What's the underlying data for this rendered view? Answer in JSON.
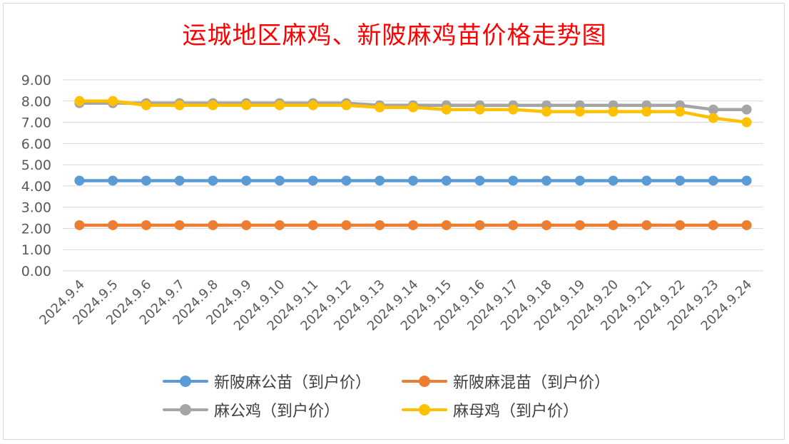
{
  "chart_data": {
    "type": "line",
    "title": "运城地区麻鸡、新陂麻鸡苗价格走势图",
    "categories": [
      "2024.9.4",
      "2024.9.5",
      "2024.9.6",
      "2024.9.7",
      "2024.9.8",
      "2024.9.9",
      "2024.9.10",
      "2024.9.11",
      "2024.9.12",
      "2024.9.13",
      "2024.9.14",
      "2024.9.15",
      "2024.9.16",
      "2024.9.17",
      "2024.9.18",
      "2024.9.19",
      "2024.9.20",
      "2024.9.21",
      "2024.9.22",
      "2024.9.23",
      "2024.9.24"
    ],
    "ylim": [
      0,
      9
    ],
    "yticks": [
      "0.00",
      "1.00",
      "2.00",
      "3.00",
      "4.00",
      "5.00",
      "6.00",
      "7.00",
      "8.00",
      "9.00"
    ],
    "grid": true,
    "legend_position": "bottom",
    "series": [
      {
        "name": "新陂麻公苗（到户价）",
        "color": "#5b9bd5",
        "values": [
          4.25,
          4.25,
          4.25,
          4.25,
          4.25,
          4.25,
          4.25,
          4.25,
          4.25,
          4.25,
          4.25,
          4.25,
          4.25,
          4.25,
          4.25,
          4.25,
          4.25,
          4.25,
          4.25,
          4.25,
          4.25
        ]
      },
      {
        "name": "新陂麻混苗（到户价）",
        "color": "#ed7d31",
        "values": [
          2.15,
          2.15,
          2.15,
          2.15,
          2.15,
          2.15,
          2.15,
          2.15,
          2.15,
          2.15,
          2.15,
          2.15,
          2.15,
          2.15,
          2.15,
          2.15,
          2.15,
          2.15,
          2.15,
          2.15,
          2.15
        ]
      },
      {
        "name": "麻公鸡（到户价）",
        "color": "#a5a5a5",
        "values": [
          7.9,
          7.9,
          7.9,
          7.9,
          7.9,
          7.9,
          7.9,
          7.9,
          7.9,
          7.8,
          7.8,
          7.8,
          7.8,
          7.8,
          7.8,
          7.8,
          7.8,
          7.8,
          7.8,
          7.6,
          7.6
        ]
      },
      {
        "name": "麻母鸡（到户价）",
        "color": "#ffc000",
        "values": [
          8.0,
          8.0,
          7.8,
          7.8,
          7.8,
          7.8,
          7.8,
          7.8,
          7.8,
          7.7,
          7.7,
          7.6,
          7.6,
          7.6,
          7.5,
          7.5,
          7.5,
          7.5,
          7.5,
          7.2,
          7.0
        ]
      }
    ]
  }
}
